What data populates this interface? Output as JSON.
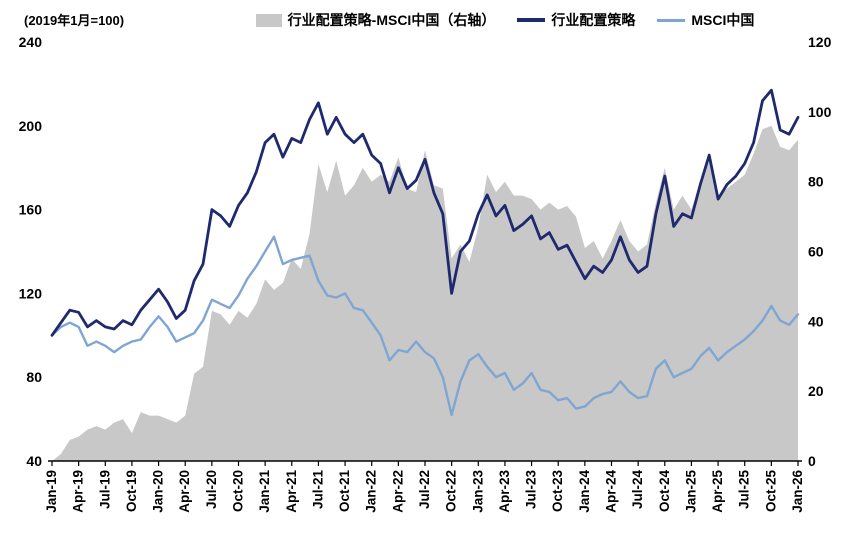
{
  "annotation": "(2019年1月=100)",
  "colors": {
    "area_gray": "#c8c8c8",
    "line_navy": "#1f2a6e",
    "line_blue": "#7fa6d2",
    "axis": "#000000"
  },
  "legend": [
    {
      "label": "行业配置策略-MSCI中国（右轴）",
      "type": "area"
    },
    {
      "label": "行业配置策略",
      "type": "line-thick"
    },
    {
      "label": "MSCI中国",
      "type": "line-thin"
    }
  ],
  "chart_data": {
    "type": "line",
    "title": "",
    "x_note": "monthly points, Jan-2019 to Jan-2026",
    "x_tick_labels": [
      "Jan-19",
      "Apr-19",
      "Jul-19",
      "Oct-19",
      "Jan-20",
      "Apr-20",
      "Jul-20",
      "Oct-20",
      "Jan-21",
      "Apr-21",
      "Jul-21",
      "Oct-21",
      "Jan-22",
      "Apr-22",
      "Jul-22",
      "Oct-22",
      "Jan-23",
      "Apr-23",
      "Jul-23",
      "Oct-23",
      "Jan-24",
      "Apr-24",
      "Jul-24",
      "Oct-24",
      "Jan-25",
      "Apr-25",
      "Jul-25",
      "Oct-25",
      "Jan-26"
    ],
    "x_tick_every_n_points": 3,
    "y_left": {
      "min": 40,
      "max": 240,
      "ticks": [
        40,
        80,
        120,
        160,
        200,
        240
      ]
    },
    "y_right": {
      "min": 0,
      "max": 120,
      "ticks": [
        0,
        20,
        40,
        60,
        80,
        100,
        120
      ]
    },
    "grid": false,
    "legend_position": "top-center",
    "series": [
      {
        "name": "行业配置策略-MSCI中国（右轴）",
        "axis": "right",
        "render": "area",
        "values": [
          0,
          2,
          6,
          7,
          9,
          10,
          9,
          11,
          12,
          8,
          14,
          13,
          13,
          12,
          11,
          13,
          25,
          27,
          43,
          42,
          39,
          43,
          41,
          45,
          52,
          49,
          51,
          58,
          55,
          65,
          85,
          77,
          86,
          76,
          79,
          84,
          80,
          82,
          80,
          87,
          78,
          77,
          89,
          79,
          78,
          58,
          62,
          57,
          67,
          82,
          77,
          80,
          76,
          76,
          75,
          72,
          74,
          72,
          73,
          70,
          61,
          63,
          58,
          63,
          69,
          63,
          60,
          62,
          74,
          84,
          72,
          76,
          72,
          80,
          86,
          76,
          78,
          80,
          82,
          88,
          95,
          96,
          90,
          89,
          92
        ]
      },
      {
        "name": "行业配置策略",
        "axis": "left",
        "render": "line-thick",
        "values": [
          100,
          106,
          112,
          111,
          104,
          107,
          104,
          103,
          107,
          105,
          112,
          117,
          122,
          116,
          108,
          112,
          126,
          134,
          160,
          157,
          152,
          162,
          168,
          178,
          192,
          196,
          185,
          194,
          192,
          203,
          211,
          196,
          204,
          196,
          192,
          196,
          186,
          182,
          168,
          180,
          170,
          174,
          184,
          168,
          158,
          120,
          140,
          145,
          158,
          167,
          157,
          162,
          150,
          153,
          157,
          146,
          149,
          141,
          143,
          135,
          127,
          133,
          130,
          136,
          147,
          136,
          130,
          133,
          158,
          176,
          152,
          158,
          156,
          172,
          186,
          165,
          172,
          176,
          182,
          192,
          212,
          217,
          198,
          196,
          204
        ]
      },
      {
        "name": "MSCI中国",
        "axis": "left",
        "render": "line-thin",
        "values": [
          100,
          104,
          106,
          104,
          95,
          97,
          95,
          92,
          95,
          97,
          98,
          104,
          109,
          104,
          97,
          99,
          101,
          107,
          117,
          115,
          113,
          119,
          127,
          133,
          140,
          147,
          134,
          136,
          137,
          138,
          126,
          119,
          118,
          120,
          113,
          112,
          106,
          100,
          88,
          93,
          92,
          97,
          92,
          89,
          80,
          62,
          78,
          88,
          91,
          85,
          80,
          82,
          74,
          77,
          82,
          74,
          73,
          69,
          70,
          65,
          66,
          70,
          72,
          73,
          78,
          73,
          70,
          71,
          84,
          88,
          80,
          82,
          84,
          90,
          94,
          88,
          92,
          95,
          98,
          102,
          107,
          114,
          107,
          105,
          110
        ]
      }
    ]
  }
}
